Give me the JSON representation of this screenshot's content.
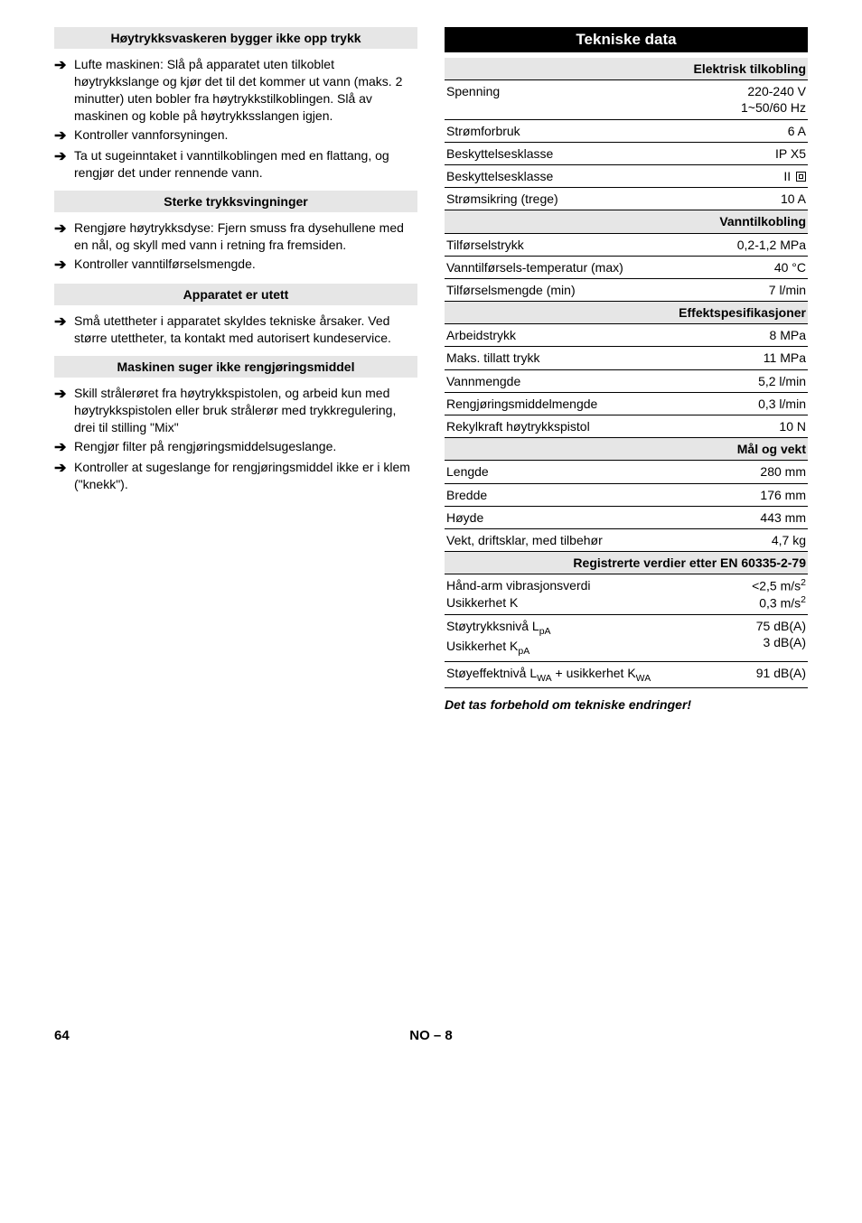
{
  "left": {
    "sections": [
      {
        "heading": "Høytrykksvaskeren bygger ikke opp trykk",
        "bullets": [
          "Lufte maskinen: Slå på apparatet uten tilkoblet høytrykkslange og kjør det til det kommer ut vann (maks. 2 minutter) uten bobler fra høytrykkstilkoblingen. Slå av maskinen og koble på høytrykksslangen igjen.",
          "Kontroller vannforsyningen.",
          "Ta ut sugeinntaket i vanntilkoblingen med en flattang, og rengjør det under rennende vann."
        ]
      },
      {
        "heading": "Sterke trykksvingninger",
        "bullets": [
          "Rengjøre høytrykksdyse: Fjern smuss fra dysehullene med en nål, og skyll med vann i retning fra fremsiden.",
          "Kontroller vanntilførselsmengde."
        ]
      },
      {
        "heading": "Apparatet er utett",
        "bullets": [
          "Små utettheter i apparatet skyldes tekniske årsaker. Ved større utettheter, ta kontakt med autorisert kundeservice."
        ]
      },
      {
        "heading": "Maskinen suger ikke rengjøringsmiddel",
        "bullets": [
          "Skill strålerøret fra høytrykkspistolen, og arbeid kun med høytrykkspistolen eller bruk strålerør med trykkregulering, drei til stilling \"Mix\"",
          "Rengjør filter på rengjøringsmiddelsugeslange.",
          "Kontroller at sugeslange for rengjøringsmiddel ikke er i klem (\"knekk\")."
        ]
      }
    ]
  },
  "right": {
    "title": "Tekniske data",
    "groups": [
      {
        "category": "Elektrisk tilkobling",
        "rows": [
          {
            "label": "Spenning",
            "value": "220-240 V\n1~50/60 Hz"
          },
          {
            "label": "Strømforbruk",
            "value": "6 A"
          },
          {
            "label": "Beskyttelsesklasse",
            "value": "IP X5"
          },
          {
            "label": "Beskyttelsesklasse",
            "value": "II",
            "doublebox": true
          },
          {
            "label": "Strømsikring (trege)",
            "value": "10 A"
          }
        ]
      },
      {
        "category": "Vanntilkobling",
        "rows": [
          {
            "label": "Tilførselstrykk",
            "value": "0,2-1,2 MPa"
          },
          {
            "label": "Vanntilførsels-temperatur (max)",
            "value": "40 °C"
          },
          {
            "label": "Tilførselsmengde (min)",
            "value": "7 l/min"
          }
        ]
      },
      {
        "category": "Effektspesifikasjoner",
        "rows": [
          {
            "label": "Arbeidstrykk",
            "value": "8 MPa"
          },
          {
            "label": "Maks. tillatt trykk",
            "value": "11 MPa"
          },
          {
            "label": "Vannmengde",
            "value": "5,2 l/min"
          },
          {
            "label": "Rengjøringsmiddelmengde",
            "value": "0,3 l/min"
          },
          {
            "label": "Rekylkraft høytrykkspistol",
            "value": "10 N"
          }
        ]
      },
      {
        "category": "Mål og vekt",
        "rows": [
          {
            "label": "Lengde",
            "value": "280 mm"
          },
          {
            "label": "Bredde",
            "value": "176 mm"
          },
          {
            "label": "Høyde",
            "value": "443 mm"
          },
          {
            "label": "Vekt, driftsklar, med tilbehør",
            "value": "4,7 kg"
          }
        ]
      },
      {
        "category": "Registrerte verdier etter EN 60335-2-79",
        "rows": [
          {
            "label": "Hånd-arm vibrasjonsverdi\nUsikkerhet K",
            "value": "<2,5 m/s²\n0,3 m/s²"
          },
          {
            "label_html": "Støytrykksnivå L<sub>pA</sub>\nUsikkerhet K<sub>pA</sub>",
            "value": "75 dB(A)\n3 dB(A)"
          },
          {
            "label_html": "Støyeffektnivå L<sub>WA</sub> + usikkerhet K<sub>WA</sub>",
            "value": "91 dB(A)"
          }
        ]
      }
    ],
    "footnote": "Det tas forbehold om tekniske endringer!"
  },
  "footer": {
    "page": "64",
    "center": "NO – 8"
  }
}
